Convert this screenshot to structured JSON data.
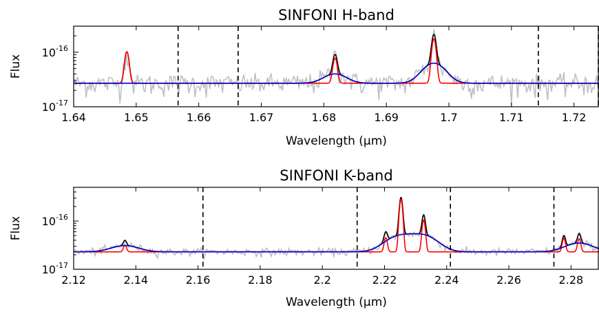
{
  "chart_data": [
    {
      "type": "line",
      "title": "SINFONI H-band",
      "xlabel": "Wavelength (μm)",
      "ylabel": "Flux",
      "xlim": [
        1.64,
        1.724
      ],
      "ylim": [
        1e-17,
        3e-16
      ],
      "yscale": "log",
      "x_ticks": [
        "1.64",
        "1.65",
        "1.66",
        "1.67",
        "1.68",
        "1.69",
        "1.7",
        "1.71",
        "1.72"
      ],
      "y_ticks": [
        {
          "mantissa": "10",
          "exponent": "-17"
        },
        {
          "mantissa": "10",
          "exponent": "-16"
        }
      ],
      "continuum": 2.7e-17,
      "vlines": [
        1.6567,
        1.6663,
        1.7143,
        1.7239
      ],
      "narrow_peaks": [
        {
          "center": 1.6485,
          "peak": 1.02e-16
        },
        {
          "center": 1.6818,
          "peak": 7.8e-17
        },
        {
          "center": 1.6976,
          "peak": 1.75e-16
        }
      ],
      "broad_peaks": [
        {
          "center": 1.6818,
          "peak": 4e-17
        },
        {
          "center": 1.6976,
          "peak": 6.3e-17
        }
      ],
      "series": [
        {
          "role": "data",
          "color": "#c0c0c0"
        },
        {
          "role": "total model",
          "color": "#000000"
        },
        {
          "role": "narrow components",
          "color": "#ff0000"
        },
        {
          "role": "broad components",
          "color": "#0000cc"
        }
      ]
    },
    {
      "type": "line",
      "title": "SINFONI K-band",
      "xlabel": "Wavelength (μm)",
      "ylabel": "Flux",
      "xlim": [
        2.12,
        2.289
      ],
      "ylim": [
        1e-17,
        5e-16
      ],
      "yscale": "log",
      "x_ticks": [
        "2.12",
        "2.14",
        "2.16",
        "2.18",
        "2.2",
        "2.22",
        "2.24",
        "2.26",
        "2.28"
      ],
      "y_ticks": [
        {
          "mantissa": "10",
          "exponent": "-17"
        },
        {
          "mantissa": "10",
          "exponent": "-16"
        }
      ],
      "continuum": 2.3e-17,
      "vlines": [
        2.1616,
        2.2112,
        2.2412,
        2.2745
      ],
      "narrow_peaks": [
        {
          "center": 2.1365,
          "peak": 3.2e-17
        },
        {
          "center": 2.2204,
          "peak": 4.5e-17
        },
        {
          "center": 2.2253,
          "peak": 2.8e-16
        },
        {
          "center": 2.2326,
          "peak": 1.05e-16
        },
        {
          "center": 2.2777,
          "peak": 4.4e-17
        },
        {
          "center": 2.2826,
          "peak": 4.3e-17
        }
      ],
      "broad_peaks": [
        {
          "center": 2.1365,
          "peak": 3.1e-17
        },
        {
          "center": 2.2245,
          "peak": 4.7e-17
        },
        {
          "center": 2.2326,
          "peak": 4.9e-17
        },
        {
          "center": 2.2826,
          "peak": 3.5e-17
        }
      ],
      "series": [
        {
          "role": "data",
          "color": "#c0c0c0"
        },
        {
          "role": "total model",
          "color": "#000000"
        },
        {
          "role": "narrow components",
          "color": "#ff0000"
        },
        {
          "role": "broad components",
          "color": "#0000cc"
        }
      ]
    }
  ]
}
